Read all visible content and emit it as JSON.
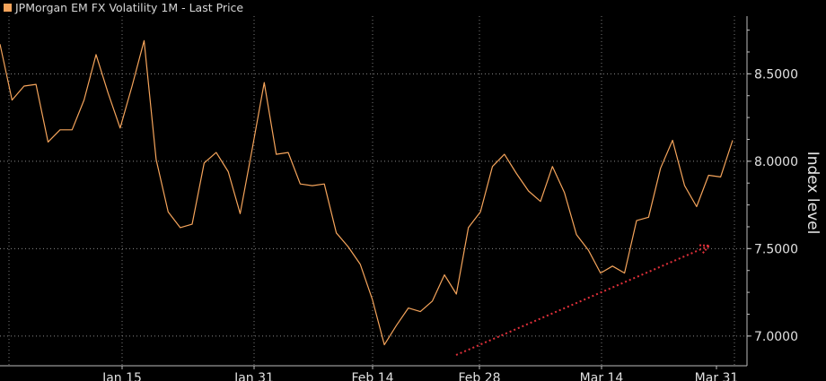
{
  "chart_data": {
    "type": "line",
    "title": "JPMorgan EM FX Volatility 1M - Last Price",
    "ylabel": "Index level",
    "xlabel": "",
    "ylim": [
      6.83,
      8.83
    ],
    "yticks": [
      7.0,
      7.5,
      8.0,
      8.5
    ],
    "ytick_labels": [
      "7.0000",
      "7.5000",
      "8.0000",
      "8.5000"
    ],
    "xtick_labels": [
      "Jan 15",
      "Jan 31",
      "Feb 14",
      "Feb 28",
      "Mar 14",
      "Mar 31"
    ],
    "grid": true,
    "series": [
      {
        "name": "JPMorgan EM FX Volatility 1M - Last Price",
        "color": "#f5a45b",
        "values": [
          8.67,
          8.35,
          8.43,
          8.44,
          8.11,
          8.18,
          8.18,
          8.35,
          8.61,
          8.39,
          8.19,
          8.43,
          8.69,
          8.01,
          7.71,
          7.62,
          7.64,
          7.99,
          8.05,
          7.94,
          7.7,
          8.07,
          8.45,
          8.04,
          8.05,
          7.87,
          7.86,
          7.87,
          7.59,
          7.51,
          7.41,
          7.21,
          6.95,
          7.06,
          7.16,
          7.14,
          7.2,
          7.35,
          7.24,
          7.62,
          7.71,
          7.97,
          8.04,
          7.93,
          7.83,
          7.77,
          7.97,
          7.82,
          7.58,
          7.49,
          7.36,
          7.4,
          7.36,
          7.66,
          7.68,
          7.96,
          8.12,
          7.86,
          7.74,
          7.92,
          7.91,
          8.12
        ]
      }
    ],
    "annotation": {
      "type": "arrow",
      "style": "dotted",
      "color": "#e0303a"
    }
  }
}
